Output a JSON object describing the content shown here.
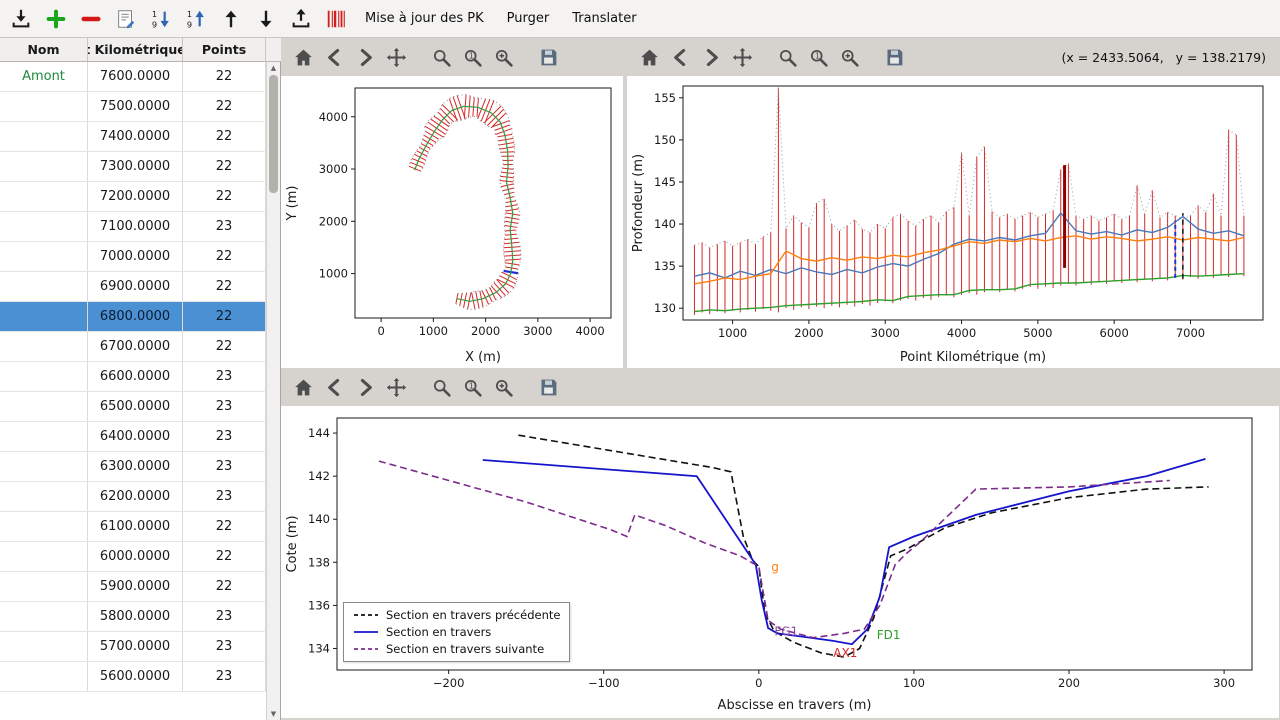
{
  "toolbar": {
    "actions": [
      {
        "label": "Mise à jour des PK"
      },
      {
        "label": "Purger"
      },
      {
        "label": "Translater"
      }
    ]
  },
  "readout": {
    "text": "(x = 2433.5064,   y = 138.2179)"
  },
  "table": {
    "columns": [
      {
        "label": "Nom"
      },
      {
        "label": "t Kilométrique"
      },
      {
        "label": "Points"
      }
    ],
    "rows": [
      {
        "nom": "Amont",
        "pk": "7600.0000",
        "points": "22",
        "selected": false
      },
      {
        "nom": "",
        "pk": "7500.0000",
        "points": "22",
        "selected": false
      },
      {
        "nom": "",
        "pk": "7400.0000",
        "points": "22",
        "selected": false
      },
      {
        "nom": "",
        "pk": "7300.0000",
        "points": "22",
        "selected": false
      },
      {
        "nom": "",
        "pk": "7200.0000",
        "points": "22",
        "selected": false
      },
      {
        "nom": "",
        "pk": "7100.0000",
        "points": "23",
        "selected": false
      },
      {
        "nom": "",
        "pk": "7000.0000",
        "points": "22",
        "selected": false
      },
      {
        "nom": "",
        "pk": "6900.0000",
        "points": "22",
        "selected": false
      },
      {
        "nom": "",
        "pk": "6800.0000",
        "points": "22",
        "selected": true
      },
      {
        "nom": "",
        "pk": "6700.0000",
        "points": "22",
        "selected": false
      },
      {
        "nom": "",
        "pk": "6600.0000",
        "points": "23",
        "selected": false
      },
      {
        "nom": "",
        "pk": "6500.0000",
        "points": "23",
        "selected": false
      },
      {
        "nom": "",
        "pk": "6400.0000",
        "points": "23",
        "selected": false
      },
      {
        "nom": "",
        "pk": "6300.0000",
        "points": "23",
        "selected": false
      },
      {
        "nom": "",
        "pk": "6200.0000",
        "points": "23",
        "selected": false
      },
      {
        "nom": "",
        "pk": "6100.0000",
        "points": "22",
        "selected": false
      },
      {
        "nom": "",
        "pk": "6000.0000",
        "points": "22",
        "selected": false
      },
      {
        "nom": "",
        "pk": "5900.0000",
        "points": "22",
        "selected": false
      },
      {
        "nom": "",
        "pk": "5800.0000",
        "points": "23",
        "selected": false
      },
      {
        "nom": "",
        "pk": "5700.0000",
        "points": "23",
        "selected": false
      },
      {
        "nom": "",
        "pk": "5600.0000",
        "points": "23",
        "selected": false
      }
    ]
  },
  "chart_data": [
    {
      "id": "plan",
      "type": "line",
      "title": "",
      "xlabel": "X (m)",
      "ylabel": "Y (m)",
      "xlim": [
        -500,
        4400
      ],
      "ylim": [
        150,
        4550
      ],
      "xticks": [
        0,
        1000,
        2000,
        3000,
        4000
      ],
      "yticks": [
        1000,
        2000,
        3000,
        4000
      ],
      "centerline": [
        [
          1450,
          520
        ],
        [
          1700,
          470
        ],
        [
          1950,
          520
        ],
        [
          2200,
          640
        ],
        [
          2380,
          800
        ],
        [
          2480,
          1000
        ],
        [
          2520,
          1250
        ],
        [
          2500,
          1550
        ],
        [
          2470,
          1850
        ],
        [
          2520,
          2150
        ],
        [
          2470,
          2450
        ],
        [
          2400,
          2750
        ],
        [
          2430,
          3050
        ],
        [
          2420,
          3350
        ],
        [
          2370,
          3650
        ],
        [
          2280,
          3900
        ],
        [
          2100,
          4080
        ],
        [
          1850,
          4180
        ],
        [
          1580,
          4200
        ],
        [
          1350,
          4120
        ],
        [
          1180,
          3950
        ],
        [
          1020,
          3720
        ],
        [
          860,
          3450
        ],
        [
          720,
          3180
        ],
        [
          640,
          2980
        ]
      ],
      "tick_spacing": 80,
      "hw_base": 100,
      "hw_var": 55,
      "selected_fraction": 0.19,
      "colors": {
        "section": "#d62728",
        "selected": "#1f2fd4",
        "centerline": "#2e9e3a",
        "outline": "#8a8a8a"
      }
    },
    {
      "id": "profile",
      "type": "line",
      "title": "",
      "xlabel": "Point Kilométrique (m)",
      "ylabel": "Profondeur (m)",
      "xlim": [
        350,
        7950
      ],
      "ylim": [
        128.6,
        156.4
      ],
      "xticks": [
        1000,
        2000,
        3000,
        4000,
        5000,
        6000,
        7000
      ],
      "yticks": [
        130,
        135,
        140,
        145,
        150,
        155
      ],
      "line_color": "#d62728",
      "tops_outline": "#999999",
      "sections": {
        "pk_start": 500,
        "pk_step": 100,
        "tops": [
          137.5,
          137.8,
          137.2,
          137.6,
          138.0,
          137.4,
          137.8,
          138.2,
          137.6,
          138.5,
          139.0,
          156.2,
          139.5,
          141.0,
          140.2,
          139.6,
          142.5,
          143.0,
          140.0,
          139.2,
          139.8,
          140.5,
          139.4,
          139.0,
          140.0,
          139.5,
          140.8,
          141.2,
          140.4,
          139.8,
          140.6,
          141.0,
          140.2,
          141.5,
          142.0,
          148.5,
          141.0,
          148.0,
          149.2,
          141.5,
          140.8,
          141.2,
          140.6,
          141.0,
          141.4,
          140.8,
          141.2,
          141.6,
          146.5,
          147.2,
          141.0,
          140.6,
          141.0,
          140.4,
          140.8,
          141.2,
          140.6,
          141.0,
          144.6,
          141.2,
          144.0,
          140.8,
          141.4,
          141.0,
          140.6,
          141.0,
          142.2,
          141.4,
          143.6,
          141.0,
          151.2,
          150.6,
          141.0
        ],
        "bottoms": [
          129.2,
          129.5,
          129.3,
          129.6,
          129.4,
          129.7,
          129.5,
          129.8,
          129.6,
          129.9,
          129.7,
          129.5,
          130.0,
          129.8,
          130.1,
          129.9,
          130.2,
          130.0,
          130.3,
          130.1,
          130.4,
          130.2,
          130.5,
          130.3,
          130.6,
          130.8,
          130.6,
          130.9,
          131.1,
          130.9,
          131.2,
          131.0,
          131.3,
          131.5,
          131.3,
          131.6,
          131.8,
          131.6,
          131.9,
          132.1,
          131.9,
          132.2,
          132.0,
          132.3,
          132.5,
          132.3,
          132.6,
          132.4,
          132.7,
          132.9,
          132.7,
          133.0,
          132.8,
          133.1,
          132.9,
          133.2,
          133.0,
          133.3,
          133.1,
          133.4,
          133.2,
          133.5,
          133.3,
          133.6,
          133.4,
          133.7,
          133.5,
          133.8,
          133.6,
          133.9,
          133.7,
          134.0,
          133.8
        ]
      },
      "series": [
        {
          "name": "ligne-bleue",
          "color": "#4878b8",
          "x_start": 500,
          "x_step": 200,
          "y": [
            133.8,
            134.2,
            133.6,
            134.4,
            133.9,
            134.6,
            134.1,
            134.8,
            134.3,
            134.0,
            134.6,
            134.2,
            134.9,
            135.3,
            135.0,
            135.8,
            136.5,
            137.6,
            138.2,
            138.0,
            138.4,
            138.1,
            138.6,
            138.9,
            141.3,
            139.2,
            138.8,
            139.1,
            138.7,
            139.3,
            139.0,
            139.6,
            140.9,
            139.4,
            138.9,
            139.2,
            138.6
          ]
        },
        {
          "name": "ligne-orange",
          "color": "#ff7f0e",
          "x_start": 500,
          "x_step": 200,
          "y": [
            132.9,
            133.2,
            133.6,
            133.4,
            133.8,
            134.1,
            136.8,
            135.9,
            135.6,
            136.0,
            135.7,
            136.1,
            135.9,
            136.3,
            136.1,
            136.6,
            136.9,
            137.4,
            137.9,
            137.7,
            138.1,
            137.9,
            138.3,
            138.0,
            138.4,
            138.6,
            138.2,
            138.5,
            138.3,
            138.0,
            138.2,
            138.5,
            138.1,
            138.4,
            138.2,
            138.0,
            138.4
          ]
        },
        {
          "name": "ligne-verte",
          "color": "#2ca02c",
          "x_start": 500,
          "x_step": 200,
          "y": [
            129.6,
            129.8,
            129.7,
            129.9,
            130.0,
            130.1,
            130.3,
            130.4,
            130.5,
            130.6,
            130.7,
            130.8,
            131.0,
            130.9,
            131.4,
            131.5,
            131.6,
            131.6,
            132.1,
            132.2,
            132.2,
            132.3,
            132.8,
            132.9,
            133.0,
            133.0,
            133.1,
            133.2,
            133.3,
            133.4,
            133.5,
            133.6,
            133.9,
            133.8,
            133.9,
            134.0,
            134.1
          ]
        }
      ],
      "markers": [
        {
          "pk": 5350,
          "y0": 134.8,
          "y1": 147.0,
          "color": "#8b0000",
          "width": 3,
          "dash": ""
        },
        {
          "pk": 6800,
          "y0": 133.6,
          "y1": 140.4,
          "color": "#2233cc",
          "width": 2,
          "dash": "4 3"
        },
        {
          "pk": 6900,
          "y0": 133.5,
          "y1": 141.3,
          "color": "#111111",
          "width": 1.5,
          "dash": "5 4"
        }
      ]
    },
    {
      "id": "section",
      "type": "line",
      "title": "",
      "xlabel": "Abscisse en travers (m)",
      "ylabel": "Cote (m)",
      "xlim": [
        -272,
        318
      ],
      "ylim": [
        133.0,
        144.7
      ],
      "xticks": [
        -200,
        -100,
        0,
        100,
        200,
        300
      ],
      "yticks": [
        134,
        136,
        138,
        140,
        142,
        144
      ],
      "series": [
        {
          "name": "Section en travers précédente",
          "color": "#111111",
          "dash": "7 4",
          "width": 1.6,
          "points": [
            [
              -155,
              143.9
            ],
            [
              -30,
              142.4
            ],
            [
              -18,
              142.2
            ],
            [
              -10,
              139.2
            ],
            [
              -4,
              138.1
            ],
            [
              0,
              137.8
            ],
            [
              4,
              135.6
            ],
            [
              10,
              134.8
            ],
            [
              22,
              134.3
            ],
            [
              40,
              133.8
            ],
            [
              55,
              133.6
            ],
            [
              65,
              134.0
            ],
            [
              74,
              135.4
            ],
            [
              85,
              138.3
            ],
            [
              95,
              138.6
            ],
            [
              120,
              139.6
            ],
            [
              150,
              140.3
            ],
            [
              200,
              141.0
            ],
            [
              250,
              141.4
            ],
            [
              290,
              141.5
            ]
          ]
        },
        {
          "name": "Section en travers",
          "color": "#1515cc",
          "dash": "",
          "width": 1.8,
          "points": [
            [
              -178,
              142.75
            ],
            [
              -40,
              142.0
            ],
            [
              -2,
              137.9
            ],
            [
              2,
              136.2
            ],
            [
              6,
              134.95
            ],
            [
              12,
              134.7
            ],
            [
              28,
              134.55
            ],
            [
              48,
              134.35
            ],
            [
              60,
              134.2
            ],
            [
              70,
              134.9
            ],
            [
              78,
              136.4
            ],
            [
              84,
              138.7
            ],
            [
              100,
              139.2
            ],
            [
              140,
              140.2
            ],
            [
              200,
              141.3
            ],
            [
              250,
              142.0
            ],
            [
              288,
              142.8
            ]
          ]
        },
        {
          "name": "Section en travers suivante",
          "color": "#7b2d8b",
          "dash": "7 4",
          "width": 1.6,
          "points": [
            [
              -245,
              142.7
            ],
            [
              -150,
              140.8
            ],
            [
              -95,
              139.5
            ],
            [
              -85,
              139.2
            ],
            [
              -80,
              140.2
            ],
            [
              -60,
              139.7
            ],
            [
              -35,
              138.9
            ],
            [
              -12,
              138.3
            ],
            [
              0,
              137.8
            ],
            [
              6,
              135.3
            ],
            [
              14,
              134.9
            ],
            [
              35,
              134.5
            ],
            [
              55,
              134.7
            ],
            [
              68,
              134.9
            ],
            [
              78,
              136.0
            ],
            [
              88,
              137.9
            ],
            [
              95,
              138.4
            ],
            [
              105,
              139.0
            ],
            [
              140,
              141.4
            ],
            [
              200,
              141.5
            ],
            [
              265,
              141.8
            ]
          ]
        }
      ],
      "labels": [
        {
          "text": "g",
          "x": 8,
          "y": 137.6,
          "color": "#ff7f0e"
        },
        {
          "text": "FG1",
          "x": 10,
          "y": 134.6,
          "color": "#8b4a9e"
        },
        {
          "text": "AX1",
          "x": 48,
          "y": 133.6,
          "color": "#d62728"
        },
        {
          "text": "FD1",
          "x": 76,
          "y": 134.45,
          "color": "#2ca02c"
        }
      ],
      "legend_position": "lower-left"
    }
  ]
}
